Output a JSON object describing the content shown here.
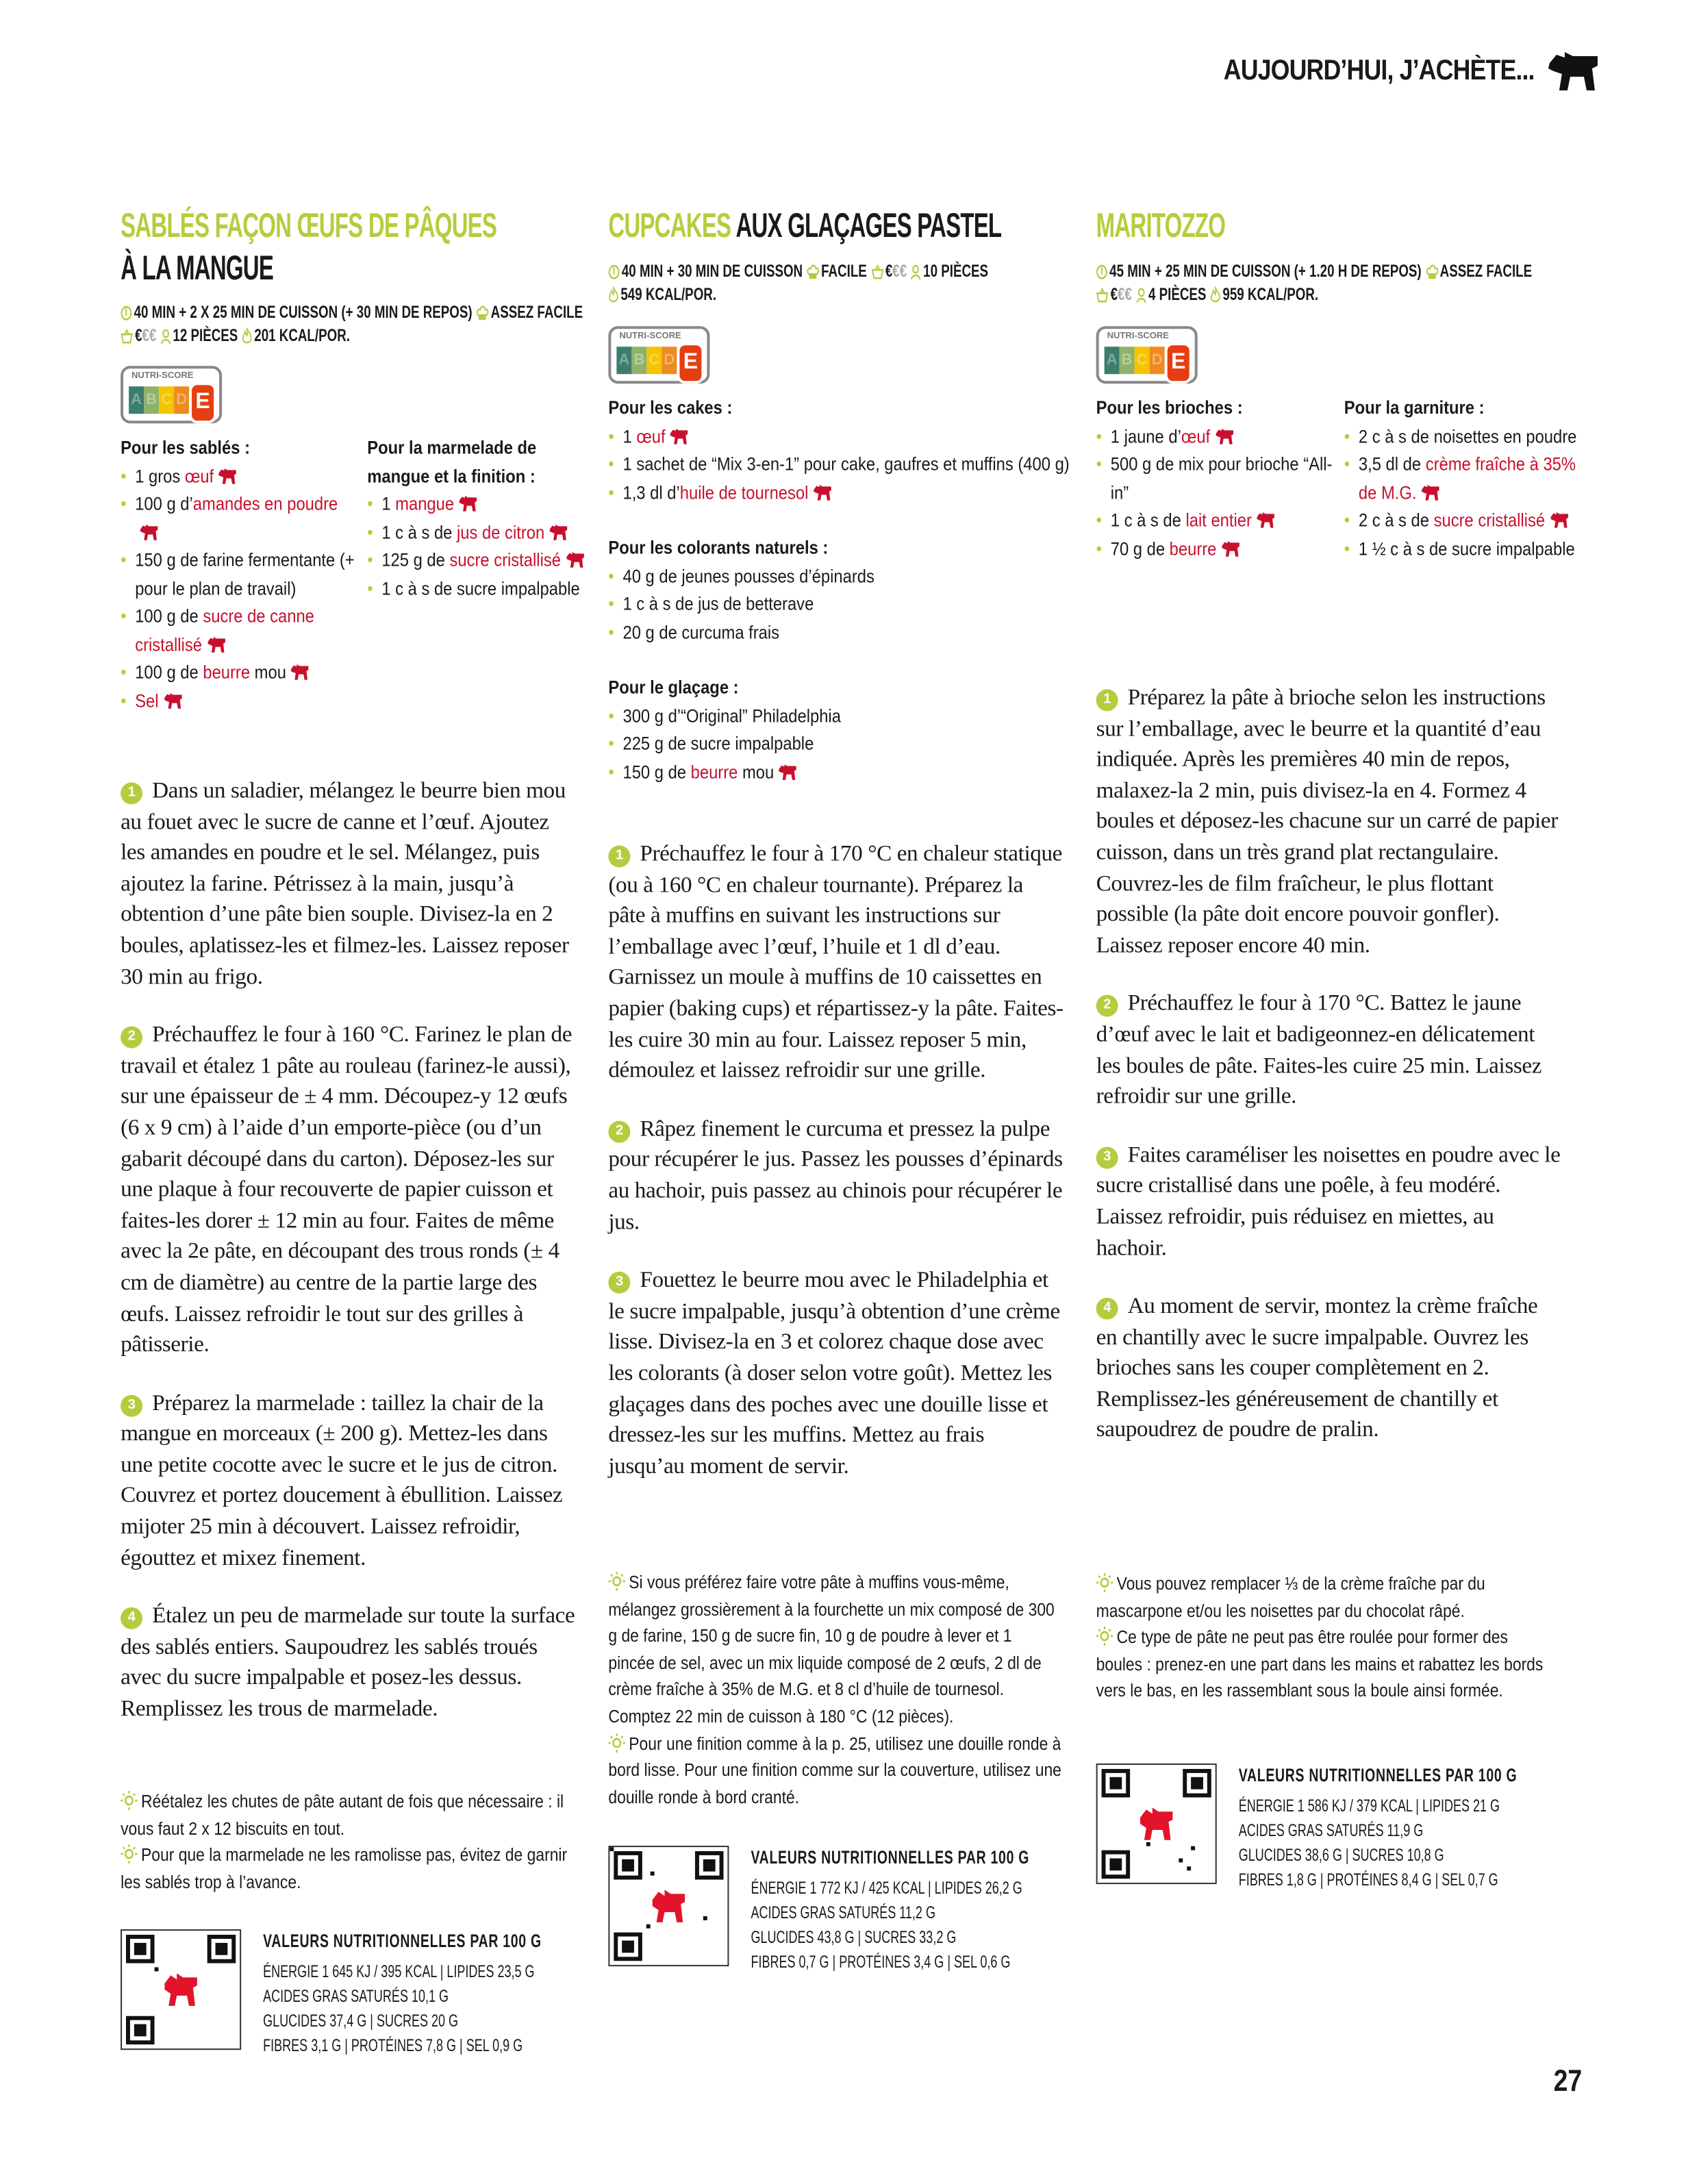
{
  "header": {
    "title": "AUJOURD’HUI, J’ACHÈTE...",
    "logo": "delhaize-lion-logo"
  },
  "page_number": "27",
  "colors": {
    "accent_green": "#b6cc3e",
    "ingredient_red": "#c8102e",
    "nutriscore_e": "#e63e11"
  },
  "recipes": [
    {
      "title_green": "SABLÉS FAÇON ŒUFS DE PÂQUES",
      "title_black": "À LA MANGUE",
      "meta": {
        "time": "40 MIN + 2 X 25 MIN DE CUISSON (+ 30 MIN DE REPOS)",
        "difficulty": "ASSEZ FACILE",
        "price": "€",
        "price_dim": "€€",
        "portions": "12 PIÈCES",
        "kcal": "201 KCAL/POR."
      },
      "nutriscore": {
        "label": "NUTRI-SCORE",
        "letters": [
          "A",
          "B",
          "C",
          "D",
          "E"
        ],
        "value": "E"
      },
      "ingredient_groups": [
        {
          "title": "Pour les sablés :",
          "items": [
            {
              "pre": "1 gros ",
              "hl": "œuf",
              "post": "",
              "icon": true
            },
            {
              "pre": "100 g d’",
              "hl": "amandes en poudre",
              "post": "",
              "icon": true
            },
            {
              "pre": "150 g de farine fermentante (+ pour le plan de travail)",
              "hl": "",
              "post": "",
              "icon": false
            },
            {
              "pre": "100 g de ",
              "hl": "sucre de canne cristallisé",
              "post": "",
              "icon": true
            },
            {
              "pre": "100 g de ",
              "hl": "beurre",
              "post": " mou",
              "icon": true
            },
            {
              "pre": "",
              "hl": "Sel",
              "post": "",
              "icon": true
            }
          ]
        },
        {
          "title": "Pour la marmelade de mangue et la finition :",
          "items": [
            {
              "pre": "1 ",
              "hl": "mangue",
              "post": "",
              "icon": true
            },
            {
              "pre": "1 c à s de ",
              "hl": "jus de citron",
              "post": "",
              "icon": true
            },
            {
              "pre": "125 g de ",
              "hl": "sucre cristallisé",
              "post": "",
              "icon": true
            },
            {
              "pre": "1 c à s de sucre impalpable",
              "hl": "",
              "post": "",
              "icon": false
            }
          ]
        }
      ],
      "steps": [
        {
          "n": "1",
          "text": "Dans un saladier, mélangez le beurre bien mou au fouet avec le sucre de canne et l’œuf. Ajoutez les amandes en poudre et le sel. Mélangez, puis ajoutez la farine. Pétrissez à la main, jusqu’à obtention d’une pâte bien souple. Divisez-la en 2 boules, aplatissez-les et filmez-les. Laissez reposer 30 min au frigo."
        },
        {
          "n": "2",
          "text": "Préchauffez le four à 160 °C. Farinez le plan de travail et étalez 1 pâte au rouleau (farinez-le aussi), sur une épaisseur de ± 4 mm. Découpez-y 12 œufs (6 x 9 cm) à l’aide d’un emporte-pièce (ou d’un gabarit découpé dans du carton). Déposez-les sur une plaque à four recouverte de papier cuisson et faites-les dorer ± 12 min au four. Faites de même avec la 2e pâte, en découpant des trous ronds (± 4 cm de diamètre) au centre de la partie large des œufs. Laissez refroidir le tout sur des grilles à pâtisserie."
        },
        {
          "n": "3",
          "text": "Préparez la marmelade : taillez la chair de la mangue en morceaux (± 200 g). Mettez-les dans une petite cocotte avec le sucre et le jus de citron. Couvrez et portez doucement à ébullition. Laissez mijoter 25 min à découvert. Laissez refroidir, égouttez et mixez finement."
        },
        {
          "n": "4",
          "text": "Étalez un peu de marmelade sur toute la surface des sablés entiers. Saupoudrez les sablés troués avec du sucre impalpable et posez-les dessus. Remplissez les trous de marmelade."
        }
      ],
      "tips": [
        "Réétalez les chutes de pâte autant de fois que nécessaire : il vous faut 2 x 12 biscuits en tout.",
        "Pour que la marmelade ne les ramolisse pas, évitez de garnir les sablés trop à l’avance."
      ],
      "nutrition": {
        "title": "VALEURS NUTRITIONNELLES PAR 100 G",
        "lines": [
          "ÉNERGIE 1 645 KJ / 395 KCAL | LIPIDES 23,5 G",
          "ACIDES GRAS SATURÉS 10,1 G",
          "GLUCIDES 37,4 G | SUCRES 20 G",
          "FIBRES 3,1 G | PROTÉINES 7,8 G | SEL 0,9 G"
        ]
      }
    },
    {
      "title_green": "CUPCAKES",
      "title_black": "AUX GLAÇAGES PASTEL",
      "meta": {
        "time": "40 MIN + 30 MIN DE CUISSON",
        "difficulty": "FACILE",
        "price": "€",
        "price_dim": "€€",
        "portions": "10 PIÈCES",
        "kcal": "549 KCAL/POR."
      },
      "nutriscore": {
        "label": "NUTRI-SCORE",
        "letters": [
          "A",
          "B",
          "C",
          "D",
          "E"
        ],
        "value": "E"
      },
      "ingredient_groups": [
        {
          "title": "Pour les cakes :",
          "items": [
            {
              "pre": "1 ",
              "hl": "œuf",
              "post": "",
              "icon": true
            },
            {
              "pre": "1 sachet de “Mix 3-en-1” pour cake, gaufres et muffins (400 g)",
              "hl": "",
              "post": "",
              "icon": false
            },
            {
              "pre": "1,3 dl d’",
              "hl": "huile de tournesol",
              "post": "",
              "icon": true
            }
          ]
        },
        {
          "title": "Pour les colorants naturels :",
          "items": [
            {
              "pre": "40 g de jeunes pousses d’épinards",
              "hl": "",
              "post": "",
              "icon": false
            },
            {
              "pre": "1 c à s de jus de betterave",
              "hl": "",
              "post": "",
              "icon": false
            },
            {
              "pre": "20 g de curcuma frais",
              "hl": "",
              "post": "",
              "icon": false
            }
          ]
        },
        {
          "title": "Pour le glaçage :",
          "items": [
            {
              "pre": "300 g d’“Original” Philadelphia",
              "hl": "",
              "post": "",
              "icon": false
            },
            {
              "pre": "225 g de sucre impalpable",
              "hl": "",
              "post": "",
              "icon": false
            },
            {
              "pre": "150 g de ",
              "hl": "beurre",
              "post": " mou",
              "icon": true
            }
          ]
        }
      ],
      "steps": [
        {
          "n": "1",
          "text": "Préchauffez le four à 170 °C en chaleur statique (ou à 160 °C en chaleur tournante). Préparez la pâte à muffins en suivant les instructions sur l’emballage avec l’œuf, l’huile et 1 dl d’eau. Garnissez un moule à muffins de 10 caissettes en papier (baking cups) et répartissez-y la pâte. Faites-les cuire 30 min au four. Laissez reposer 5 min, démoulez et laissez refroidir sur une grille."
        },
        {
          "n": "2",
          "text": "Râpez finement le curcuma et pressez la pulpe pour récupérer le jus. Passez les pousses d’épinards au hachoir, puis passez au chinois pour récupérer le jus."
        },
        {
          "n": "3",
          "text": "Fouettez le beurre mou avec le Philadelphia et le sucre impalpable, jusqu’à obtention d’une crème lisse. Divisez-la en 3 et colorez chaque dose avec les colorants (à doser selon votre goût). Mettez les glaçages dans des poches avec une douille lisse et dressez-les sur les muffins. Mettez au frais jusqu’au moment de servir."
        }
      ],
      "tips": [
        "Si vous préférez faire votre pâte à muffins vous-même, mélangez grossièrement à la fourchette un mix composé de 300 g de farine, 150 g de sucre fin, 10 g de poudre à lever et 1 pincée de sel, avec un mix liquide composé de 2 œufs, 2 dl de crème fraîche à 35% de M.G. et 8 cl d’huile de tournesol. Comptez 22 min de cuisson à 180 °C (12 pièces).",
        "Pour une finition comme à la p. 25, utilisez une douille ronde à bord lisse. Pour une finition comme sur la couverture, utilisez une douille ronde à bord cranté."
      ],
      "nutrition": {
        "title": "VALEURS NUTRITIONNELLES PAR 100 G",
        "lines": [
          "ÉNERGIE 1 772 KJ / 425 KCAL | LIPIDES 26,2 G",
          "ACIDES GRAS SATURÉS 11,2 G",
          "GLUCIDES 43,8 G | SUCRES 33,2 G",
          "FIBRES 0,7 G | PROTÉINES 3,4 G | SEL 0,6 G"
        ]
      }
    },
    {
      "title_green": "MARITOZZO",
      "title_black": "",
      "meta": {
        "time": "45 MIN + 25 MIN DE CUISSON (+ 1.20 H DE REPOS)",
        "difficulty": "ASSEZ FACILE",
        "price": "€",
        "price_dim": "€€",
        "portions": "4 PIÈCES",
        "kcal": "959 KCAL/POR."
      },
      "nutriscore": {
        "label": "NUTRI-SCORE",
        "letters": [
          "A",
          "B",
          "C",
          "D",
          "E"
        ],
        "value": "E"
      },
      "ingredient_groups": [
        {
          "title": "Pour les brioches :",
          "items": [
            {
              "pre": "1 jaune d’",
              "hl": "œuf",
              "post": "",
              "icon": true
            },
            {
              "pre": "500 g de mix pour brioche “All-in”",
              "hl": "",
              "post": "",
              "icon": false
            },
            {
              "pre": "1 c à s de ",
              "hl": "lait entier",
              "post": "",
              "icon": true
            },
            {
              "pre": "70 g de ",
              "hl": "beurre",
              "post": "",
              "icon": true
            }
          ]
        },
        {
          "title": "Pour la garniture :",
          "items": [
            {
              "pre": "2 c à s de noisettes en poudre",
              "hl": "",
              "post": "",
              "icon": false
            },
            {
              "pre": "3,5 dl de ",
              "hl": "crème fraîche à 35% de M.G.",
              "post": "",
              "icon": true
            },
            {
              "pre": "2 c à s de ",
              "hl": "sucre cristallisé",
              "post": "",
              "icon": true
            },
            {
              "pre": "1 ½ c à s de sucre impalpable",
              "hl": "",
              "post": "",
              "icon": false
            }
          ]
        }
      ],
      "steps": [
        {
          "n": "1",
          "text": "Préparez la pâte à brioche selon les instructions sur l’emballage, avec le beurre et la quantité d’eau indiquée. Après les premières 40 min de repos, malaxez-la 2 min, puis divisez-la en 4. Formez 4 boules et déposez-les chacune sur un carré de papier cuisson, dans un très grand plat rectangulaire. Couvrez-les de film fraîcheur, le plus flottant possible (la pâte doit encore pouvoir gonfler). Laissez reposer encore 40 min."
        },
        {
          "n": "2",
          "text": "Préchauffez le four à 170 °C. Battez le jaune d’œuf avec le lait et badigeonnez-en délicatement les boules de pâte. Faites-les cuire 25 min. Laissez refroidir sur une grille."
        },
        {
          "n": "3",
          "text": "Faites caraméliser les noisettes en poudre avec le sucre cristallisé dans une poêle, à feu modéré. Laissez refroidir, puis réduisez en miettes, au hachoir."
        },
        {
          "n": "4",
          "text": "Au moment de servir, montez la crème fraîche en chantilly avec le sucre impalpable. Ouvrez les brioches sans les couper complètement en 2. Remplissez-les généreusement de chantilly et saupoudrez de poudre de pralin."
        }
      ],
      "tips": [
        "Vous pouvez remplacer ⅓ de la crème fraîche par du mascarpone et/ou les noisettes par du chocolat râpé.",
        "Ce type de pâte ne peut pas être roulée pour former des boules : prenez-en une part dans les mains et rabattez les bords vers le bas, en les rassemblant sous la boule ainsi formée."
      ],
      "nutrition": {
        "title": "VALEURS NUTRITIONNELLES PAR 100 G",
        "lines": [
          "ÉNERGIE 1 586 KJ / 379 KCAL | LIPIDES 21 G",
          "ACIDES GRAS SATURÉS 11,9 G",
          "GLUCIDES 38,6 G | SUCRES 10,8 G",
          "FIBRES 1,8 G | PROTÉINES 8,4 G | SEL 0,7 G"
        ]
      }
    }
  ]
}
